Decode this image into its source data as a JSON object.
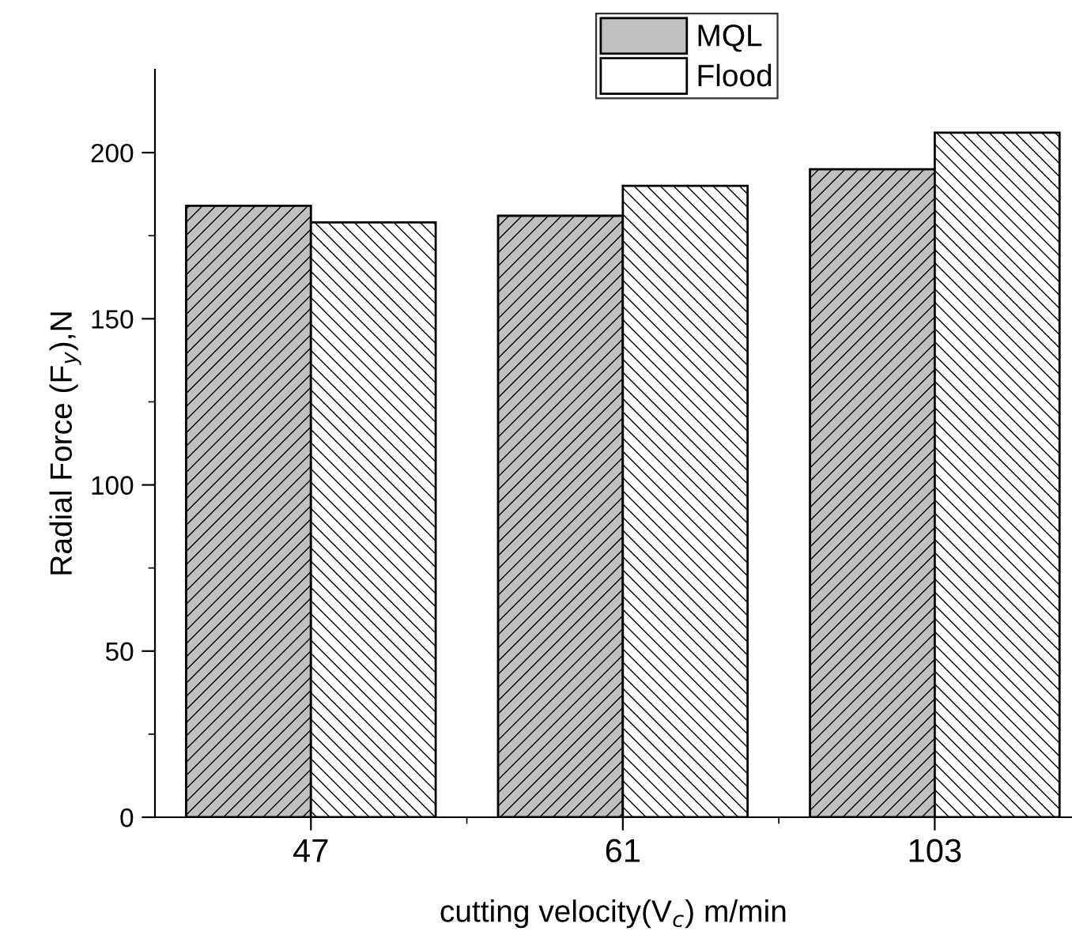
{
  "chart_data": {
    "type": "bar",
    "xlabel": "cutting velocity(V$_{c}$) m/min",
    "ylabel": "Radial Force (F$_{y}$),N",
    "categories": [
      "47",
      "61",
      "103"
    ],
    "series": [
      {
        "name": "MQL",
        "color": "#c0c0c0",
        "values": [
          184,
          181,
          195
        ]
      },
      {
        "name": "Flood",
        "color": "#ffffff",
        "values": [
          179,
          190,
          206
        ]
      }
    ],
    "ylim": [
      0,
      225
    ],
    "yticks": [
      0,
      50,
      100,
      150,
      200
    ],
    "grid": false,
    "legend": "top"
  }
}
